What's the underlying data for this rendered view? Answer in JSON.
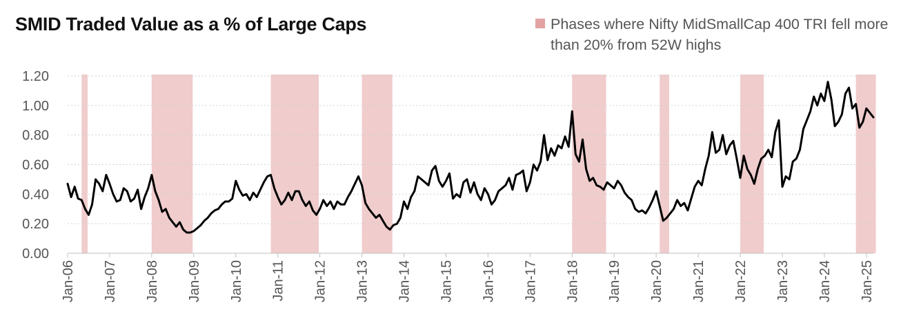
{
  "title": "SMID Traded Value as a % of Large Caps",
  "legend": {
    "label": "Phases where Nifty MidSmallCap 400 TRI fell more than 20% from 52W highs",
    "color": "#e3a3a3"
  },
  "line_color": "#000000",
  "chart_data": {
    "type": "line",
    "title": "SMID Traded Value as a % of Large Caps",
    "xlabel": "",
    "ylabel": "",
    "ylim": [
      0,
      1.2
    ],
    "xlim": [
      "2006-01",
      "2025-03"
    ],
    "y_ticks": [
      "0.00",
      "0.20",
      "0.40",
      "0.60",
      "0.80",
      "1.00",
      "1.20"
    ],
    "x_ticks": [
      "Jan-06",
      "Jan-07",
      "Jan-08",
      "Jan-09",
      "Jan-10",
      "Jan-11",
      "Jan-12",
      "Jan-13",
      "Jan-14",
      "Jan-15",
      "Jan-16",
      "Jan-17",
      "Jan-18",
      "Jan-19",
      "Jan-20",
      "Jan-21",
      "Jan-22",
      "Jan-23",
      "Jan-24",
      "Jan-25"
    ],
    "grid": "horizontal dashed",
    "legend_position": "top-right",
    "shaded_phases": [
      {
        "start": "2006-05",
        "end": "2006-06"
      },
      {
        "start": "2008-01",
        "end": "2008-12"
      },
      {
        "start": "2010-11",
        "end": "2011-12"
      },
      {
        "start": "2013-01",
        "end": "2013-09"
      },
      {
        "start": "2018-01",
        "end": "2018-10"
      },
      {
        "start": "2020-02",
        "end": "2020-04"
      },
      {
        "start": "2022-01",
        "end": "2022-07"
      },
      {
        "start": "2024-10",
        "end": "2025-03"
      }
    ],
    "series": [
      {
        "x": [
          "2006-01",
          "2006-02",
          "2006-03",
          "2006-04",
          "2006-05",
          "2006-06",
          "2006-07",
          "2006-08",
          "2006-09",
          "2006-10",
          "2006-11",
          "2006-12",
          "2007-01",
          "2007-02",
          "2007-03",
          "2007-04",
          "2007-05",
          "2007-06",
          "2007-07",
          "2007-08",
          "2007-09",
          "2007-10",
          "2007-11",
          "2007-12",
          "2008-01",
          "2008-02",
          "2008-03",
          "2008-04",
          "2008-05",
          "2008-06",
          "2008-07",
          "2008-08",
          "2008-09",
          "2008-10",
          "2008-11",
          "2008-12",
          "2009-01",
          "2009-02",
          "2009-03",
          "2009-04",
          "2009-05",
          "2009-06",
          "2009-07",
          "2009-08",
          "2009-09",
          "2009-10",
          "2009-11",
          "2009-12",
          "2010-01",
          "2010-02",
          "2010-03",
          "2010-04",
          "2010-05",
          "2010-06",
          "2010-07",
          "2010-08",
          "2010-09",
          "2010-10",
          "2010-11",
          "2010-12",
          "2011-01",
          "2011-02",
          "2011-03",
          "2011-04",
          "2011-05",
          "2011-06",
          "2011-07",
          "2011-08",
          "2011-09",
          "2011-10",
          "2011-11",
          "2011-12",
          "2012-01",
          "2012-02",
          "2012-03",
          "2012-04",
          "2012-05",
          "2012-06",
          "2012-07",
          "2012-08",
          "2012-09",
          "2012-10",
          "2012-11",
          "2012-12",
          "2013-01",
          "2013-02",
          "2013-03",
          "2013-04",
          "2013-05",
          "2013-06",
          "2013-07",
          "2013-08",
          "2013-09",
          "2013-10",
          "2013-11",
          "2013-12",
          "2014-01",
          "2014-02",
          "2014-03",
          "2014-04",
          "2014-05",
          "2014-06",
          "2014-07",
          "2014-08",
          "2014-09",
          "2014-10",
          "2014-11",
          "2014-12",
          "2015-01",
          "2015-02",
          "2015-03",
          "2015-04",
          "2015-05",
          "2015-06",
          "2015-07",
          "2015-08",
          "2015-09",
          "2015-10",
          "2015-11",
          "2015-12",
          "2016-01",
          "2016-02",
          "2016-03",
          "2016-04",
          "2016-05",
          "2016-06",
          "2016-07",
          "2016-08",
          "2016-09",
          "2016-10",
          "2016-11",
          "2016-12",
          "2017-01",
          "2017-02",
          "2017-03",
          "2017-04",
          "2017-05",
          "2017-06",
          "2017-07",
          "2017-08",
          "2017-09",
          "2017-10",
          "2017-11",
          "2017-12",
          "2018-01",
          "2018-02",
          "2018-03",
          "2018-04",
          "2018-05",
          "2018-06",
          "2018-07",
          "2018-08",
          "2018-09",
          "2018-10",
          "2018-11",
          "2018-12",
          "2019-01",
          "2019-02",
          "2019-03",
          "2019-04",
          "2019-05",
          "2019-06",
          "2019-07",
          "2019-08",
          "2019-09",
          "2019-10",
          "2019-11",
          "2019-12",
          "2020-01",
          "2020-02",
          "2020-03",
          "2020-04",
          "2020-05",
          "2020-06",
          "2020-07",
          "2020-08",
          "2020-09",
          "2020-10",
          "2020-11",
          "2020-12",
          "2021-01",
          "2021-02",
          "2021-03",
          "2021-04",
          "2021-05",
          "2021-06",
          "2021-07",
          "2021-08",
          "2021-09",
          "2021-10",
          "2021-11",
          "2021-12",
          "2022-01",
          "2022-02",
          "2022-03",
          "2022-04",
          "2022-05",
          "2022-06",
          "2022-07",
          "2022-08",
          "2022-09",
          "2022-10",
          "2022-11",
          "2022-12",
          "2023-01",
          "2023-02",
          "2023-03",
          "2023-04",
          "2023-05",
          "2023-06",
          "2023-07",
          "2023-08",
          "2023-09",
          "2023-10",
          "2023-11",
          "2023-12",
          "2024-01",
          "2024-02",
          "2024-03",
          "2024-04",
          "2024-05",
          "2024-06",
          "2024-07",
          "2024-08",
          "2024-09",
          "2024-10",
          "2024-11",
          "2024-12",
          "2025-01",
          "2025-02",
          "2025-03"
        ],
        "values": [
          0.47,
          0.38,
          0.45,
          0.37,
          0.36,
          0.3,
          0.26,
          0.33,
          0.5,
          0.47,
          0.42,
          0.53,
          0.47,
          0.4,
          0.35,
          0.36,
          0.44,
          0.42,
          0.35,
          0.37,
          0.43,
          0.3,
          0.38,
          0.44,
          0.53,
          0.42,
          0.36,
          0.28,
          0.3,
          0.24,
          0.21,
          0.18,
          0.21,
          0.16,
          0.14,
          0.14,
          0.15,
          0.17,
          0.19,
          0.22,
          0.24,
          0.27,
          0.29,
          0.3,
          0.33,
          0.35,
          0.35,
          0.37,
          0.49,
          0.43,
          0.39,
          0.4,
          0.36,
          0.41,
          0.38,
          0.43,
          0.48,
          0.52,
          0.53,
          0.44,
          0.38,
          0.33,
          0.36,
          0.41,
          0.36,
          0.42,
          0.42,
          0.36,
          0.32,
          0.35,
          0.29,
          0.26,
          0.3,
          0.36,
          0.32,
          0.35,
          0.3,
          0.35,
          0.33,
          0.33,
          0.38,
          0.42,
          0.47,
          0.52,
          0.46,
          0.34,
          0.3,
          0.27,
          0.24,
          0.26,
          0.22,
          0.18,
          0.16,
          0.19,
          0.2,
          0.24,
          0.35,
          0.3,
          0.38,
          0.42,
          0.52,
          0.5,
          0.48,
          0.46,
          0.56,
          0.59,
          0.49,
          0.45,
          0.49,
          0.54,
          0.37,
          0.4,
          0.38,
          0.48,
          0.5,
          0.41,
          0.48,
          0.4,
          0.36,
          0.44,
          0.4,
          0.33,
          0.36,
          0.42,
          0.44,
          0.46,
          0.51,
          0.43,
          0.53,
          0.54,
          0.56,
          0.42,
          0.48,
          0.6,
          0.56,
          0.62,
          0.8,
          0.63,
          0.71,
          0.66,
          0.73,
          0.71,
          0.79,
          0.72,
          0.96,
          0.67,
          0.62,
          0.77,
          0.57,
          0.49,
          0.51,
          0.46,
          0.45,
          0.43,
          0.48,
          0.46,
          0.44,
          0.49,
          0.46,
          0.41,
          0.38,
          0.36,
          0.3,
          0.28,
          0.29,
          0.27,
          0.31,
          0.36,
          0.42,
          0.32,
          0.22,
          0.24,
          0.27,
          0.3,
          0.36,
          0.32,
          0.34,
          0.29,
          0.37,
          0.45,
          0.49,
          0.46,
          0.57,
          0.66,
          0.82,
          0.68,
          0.7,
          0.8,
          0.67,
          0.73,
          0.76,
          0.64,
          0.51,
          0.66,
          0.57,
          0.53,
          0.47,
          0.57,
          0.64,
          0.66,
          0.7,
          0.65,
          0.82,
          0.9,
          0.45,
          0.52,
          0.5,
          0.62,
          0.64,
          0.7,
          0.84,
          0.9,
          0.96,
          1.06,
          1.0,
          1.08,
          1.03,
          1.16,
          1.04,
          0.86,
          0.89,
          0.94,
          1.08,
          1.12,
          0.98,
          1.01,
          0.85,
          0.89,
          0.98,
          0.95,
          0.92
        ]
      }
    ]
  }
}
